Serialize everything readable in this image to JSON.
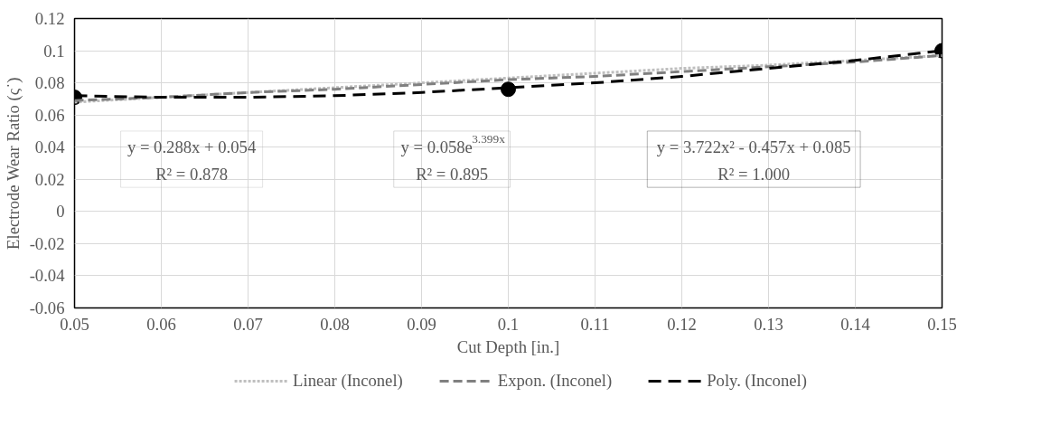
{
  "chart_data": {
    "type": "scatter",
    "xlabel": "Cut Depth [in.]",
    "ylabel": "Electrode Wear Ratio (ς˙)",
    "xlim": [
      0.05,
      0.15
    ],
    "xticks": [
      0.05,
      0.06,
      0.07,
      0.08,
      0.09,
      0.1,
      0.11,
      0.12,
      0.13,
      0.14,
      0.15
    ],
    "ylim": [
      -0.06,
      0.12
    ],
    "yticks": [
      -0.06,
      -0.04,
      -0.02,
      0,
      0.02,
      0.04,
      0.06,
      0.08,
      0.1,
      0.12
    ],
    "grid": true,
    "legend": "bottom",
    "series": [
      {
        "color": "#000000",
        "marker": "circle",
        "x": [
          0.05,
          0.1,
          0.15
        ],
        "values": [
          0.071,
          0.076,
          0.1
        ]
      },
      {
        "type": "line",
        "name": "Linear (Inconel)",
        "color": "#bfbfbf",
        "line_style": "dotted",
        "x": [
          0.05,
          0.06,
          0.07,
          0.08,
          0.09,
          0.1,
          0.11,
          0.12,
          0.13,
          0.14,
          0.15
        ],
        "values": [
          0.068,
          0.071,
          0.074,
          0.077,
          0.08,
          0.083,
          0.086,
          0.089,
          0.091,
          0.094,
          0.097
        ]
      },
      {
        "type": "line",
        "name": "Expon. (Inconel)",
        "color": "#808080",
        "line_style": "dashed",
        "x": [
          0.05,
          0.06,
          0.07,
          0.08,
          0.09,
          0.1,
          0.11,
          0.12,
          0.13,
          0.14,
          0.15
        ],
        "values": [
          0.069,
          0.071,
          0.074,
          0.076,
          0.079,
          0.082,
          0.084,
          0.087,
          0.09,
          0.093,
          0.097
        ]
      },
      {
        "type": "line",
        "name": "Poly. (Inconel)",
        "color": "#000000",
        "line_style": "dashed",
        "x": [
          0.05,
          0.06,
          0.07,
          0.08,
          0.09,
          0.1,
          0.11,
          0.12,
          0.13,
          0.14,
          0.15
        ],
        "values": [
          0.072,
          0.071,
          0.071,
          0.072,
          0.074,
          0.077,
          0.08,
          0.084,
          0.089,
          0.094,
          0.1
        ]
      }
    ],
    "annotations": [
      "y = 0.288x + 0.054\nR² = 0.878",
      "y = 0.058e$^{3.399x}$\nR² = 0.895",
      "y = 3.722x² - 0.457x + 0.085\nR² = 1.000"
    ]
  }
}
